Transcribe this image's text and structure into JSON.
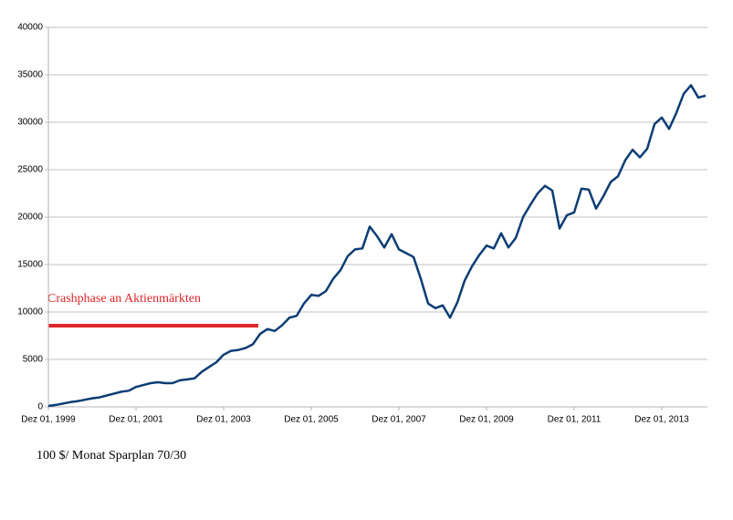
{
  "chart_data": {
    "type": "line",
    "categories": [
      "Dez 01, 1999",
      null,
      null,
      null,
      null,
      null,
      null,
      null,
      null,
      null,
      null,
      null,
      "Dez 01, 2001",
      null,
      null,
      null,
      null,
      null,
      null,
      null,
      null,
      null,
      null,
      null,
      "Dez 01, 2003",
      null,
      null,
      null,
      null,
      null,
      null,
      null,
      null,
      null,
      null,
      null,
      "Dez 01, 2005",
      null,
      null,
      null,
      null,
      null,
      null,
      null,
      null,
      null,
      null,
      null,
      "Dez 01, 2007",
      null,
      null,
      null,
      null,
      null,
      null,
      null,
      null,
      null,
      null,
      null,
      "Dez 01, 2009",
      null,
      null,
      null,
      null,
      null,
      null,
      null,
      null,
      null,
      null,
      null,
      "Dez 01, 2011",
      null,
      null,
      null,
      null,
      null,
      null,
      null,
      null,
      null,
      null,
      null,
      "Dez 01, 2013",
      null,
      null,
      null,
      null,
      null,
      null
    ],
    "series": [
      {
        "color": "#0b3d75",
        "values": [
          100,
          200,
          350,
          500,
          600,
          750,
          900,
          1000,
          1200,
          1400,
          1600,
          1700,
          2100,
          2300,
          2500,
          2600,
          2500,
          2500,
          2800,
          2900,
          3000,
          3700,
          4200,
          4700,
          5500,
          5900,
          6000,
          6200,
          6600,
          7700,
          8200,
          8000,
          8600,
          9400,
          9600,
          10900,
          11800,
          11700,
          12200,
          13500,
          14400,
          15900,
          16600,
          16700,
          19000,
          18000,
          16800,
          18200,
          16600,
          16200,
          15800,
          13500,
          10900,
          10400,
          10700,
          9400,
          11000,
          13300,
          14800,
          16000,
          17000,
          16700,
          18300,
          16800,
          17800,
          20000,
          21300,
          22500,
          23300,
          22800,
          18800,
          20200,
          20500,
          23000,
          22900,
          20900,
          22200,
          23700,
          24300,
          26000,
          27100,
          26300,
          27200,
          29800,
          30500,
          29300,
          31000,
          33000,
          33900,
          32600,
          32800
        ]
      }
    ],
    "ylim": [
      0,
      40000
    ],
    "yticks": [
      0,
      5000,
      10000,
      15000,
      20000,
      25000,
      30000,
      35000,
      40000
    ],
    "grid": true,
    "annotation": "Crashphase an Aktienmärkten",
    "caption": "100 $/ Monat Sparplan 70/30"
  }
}
